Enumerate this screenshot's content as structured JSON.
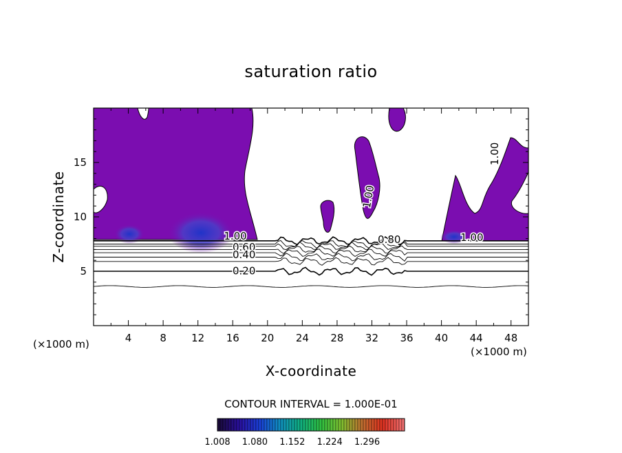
{
  "chart_data": {
    "type": "contour",
    "title": "saturation ratio",
    "xlabel": "X-coordinate",
    "ylabel": "Z-coordinate",
    "x_unit": "(×1000 m)",
    "z_unit": "(×1000 m)",
    "xlim": [
      0,
      50
    ],
    "ylim": [
      0,
      20
    ],
    "x_ticks": [
      4,
      8,
      12,
      16,
      20,
      24,
      28,
      32,
      36,
      40,
      44,
      48
    ],
    "y_ticks": [
      5,
      10,
      15
    ],
    "grid": false,
    "fill_color": "#7B0DB0",
    "core_color": "#2033C8",
    "contour_interval_text": "CONTOUR INTERVAL = 1.000E-01",
    "colorbar": {
      "tick_labels": [
        "1.008",
        "1.080",
        "1.152",
        "1.224",
        "1.296"
      ],
      "colors": [
        "#1a0a3a",
        "#2a10a0",
        "#1a40d8",
        "#1090c0",
        "#10b080",
        "#30c040",
        "#80c030",
        "#c07030",
        "#e03020",
        "#f07070"
      ]
    },
    "contour_labels": [
      {
        "text": "1.00",
        "x": 16.3,
        "z": 7.9
      },
      {
        "text": "0.60",
        "x": 17.3,
        "z": 6.9
      },
      {
        "text": "0.40",
        "x": 17.3,
        "z": 6.2
      },
      {
        "text": "0.20",
        "x": 17.3,
        "z": 4.7
      },
      {
        "text": "0.80",
        "x": 34.0,
        "z": 7.6
      },
      {
        "text": "1.00",
        "x": 43.5,
        "z": 7.8
      },
      {
        "text": "1.00",
        "x": 32.0,
        "z": 11.8,
        "rotate": -80
      },
      {
        "text": "1.00",
        "x": 46.5,
        "z": 15.8,
        "rotate": -90
      }
    ],
    "contour_levels_z": [
      7.8,
      7.5,
      7.3,
      7.0,
      6.7,
      6.3,
      5.9,
      5.0,
      3.6
    ]
  }
}
